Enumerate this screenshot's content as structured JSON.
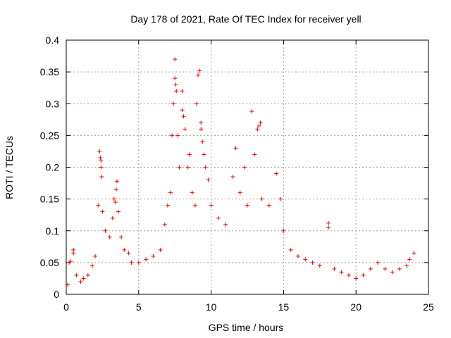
{
  "chart_data": {
    "type": "scatter",
    "title": "Day 178 of 2021, Rate Of TEC Index for receiver yell",
    "xlabel": "GPS time / hours",
    "ylabel": "ROTI / TECUs",
    "xlim": [
      0,
      25
    ],
    "ylim": [
      0,
      0.4
    ],
    "x_ticks": [
      "0",
      "5",
      "10",
      "15",
      "20",
      "25"
    ],
    "y_ticks": [
      "0",
      "0.05",
      "0.1",
      "0.15",
      "0.2",
      "0.25",
      "0.3",
      "0.35",
      "0.4"
    ],
    "grid": true,
    "legend": "none",
    "marker": "plus",
    "color": "#ff0000",
    "series": [
      {
        "values_note": "",
        "points": [
          [
            0.1,
            0.015
          ],
          [
            0.2,
            0.05
          ],
          [
            0.3,
            0.052
          ],
          [
            0.5,
            0.07
          ],
          [
            0.5,
            0.065
          ],
          [
            0.7,
            0.03
          ],
          [
            1.0,
            0.02
          ],
          [
            1.2,
            0.025
          ],
          [
            1.5,
            0.03
          ],
          [
            1.8,
            0.045
          ],
          [
            2.0,
            0.06
          ],
          [
            2.2,
            0.14
          ],
          [
            2.3,
            0.225
          ],
          [
            2.35,
            0.215
          ],
          [
            2.4,
            0.21
          ],
          [
            2.4,
            0.2
          ],
          [
            2.45,
            0.185
          ],
          [
            2.5,
            0.13
          ],
          [
            2.7,
            0.1
          ],
          [
            3.0,
            0.09
          ],
          [
            3.2,
            0.12
          ],
          [
            3.3,
            0.15
          ],
          [
            3.4,
            0.145
          ],
          [
            3.45,
            0.165
          ],
          [
            3.5,
            0.178
          ],
          [
            3.6,
            0.13
          ],
          [
            3.8,
            0.09
          ],
          [
            4.0,
            0.07
          ],
          [
            4.3,
            0.065
          ],
          [
            4.5,
            0.05
          ],
          [
            5.0,
            0.05
          ],
          [
            5.5,
            0.055
          ],
          [
            6.0,
            0.06
          ],
          [
            6.5,
            0.07
          ],
          [
            6.8,
            0.11
          ],
          [
            7.0,
            0.14
          ],
          [
            7.2,
            0.16
          ],
          [
            7.3,
            0.25
          ],
          [
            7.4,
            0.3
          ],
          [
            7.5,
            0.34
          ],
          [
            7.5,
            0.37
          ],
          [
            7.55,
            0.33
          ],
          [
            7.6,
            0.32
          ],
          [
            7.7,
            0.25
          ],
          [
            7.8,
            0.2
          ],
          [
            8.0,
            0.32
          ],
          [
            8.0,
            0.29
          ],
          [
            8.1,
            0.28
          ],
          [
            8.2,
            0.26
          ],
          [
            8.4,
            0.2
          ],
          [
            8.5,
            0.22
          ],
          [
            8.7,
            0.16
          ],
          [
            8.9,
            0.14
          ],
          [
            9.0,
            0.3
          ],
          [
            9.1,
            0.345
          ],
          [
            9.2,
            0.352
          ],
          [
            9.3,
            0.27
          ],
          [
            9.3,
            0.26
          ],
          [
            9.4,
            0.24
          ],
          [
            9.5,
            0.22
          ],
          [
            9.6,
            0.2
          ],
          [
            9.8,
            0.18
          ],
          [
            10.0,
            0.14
          ],
          [
            10.5,
            0.12
          ],
          [
            11.0,
            0.11
          ],
          [
            11.5,
            0.185
          ],
          [
            11.7,
            0.23
          ],
          [
            12.0,
            0.16
          ],
          [
            12.3,
            0.2
          ],
          [
            12.5,
            0.14
          ],
          [
            12.8,
            0.288
          ],
          [
            13.0,
            0.22
          ],
          [
            13.2,
            0.26
          ],
          [
            13.3,
            0.265
          ],
          [
            13.4,
            0.27
          ],
          [
            13.5,
            0.15
          ],
          [
            14.0,
            0.14
          ],
          [
            14.5,
            0.19
          ],
          [
            14.8,
            0.15
          ],
          [
            15.0,
            0.1
          ],
          [
            15.5,
            0.07
          ],
          [
            16.0,
            0.06
          ],
          [
            16.5,
            0.055
          ],
          [
            17.0,
            0.05
          ],
          [
            17.5,
            0.045
          ],
          [
            18.1,
            0.112
          ],
          [
            18.1,
            0.105
          ],
          [
            18.5,
            0.04
          ],
          [
            19.0,
            0.035
          ],
          [
            19.5,
            0.03
          ],
          [
            20.0,
            0.025
          ],
          [
            20.5,
            0.03
          ],
          [
            21.0,
            0.04
          ],
          [
            21.5,
            0.05
          ],
          [
            22.0,
            0.04
          ],
          [
            22.5,
            0.035
          ],
          [
            23.0,
            0.04
          ],
          [
            23.5,
            0.045
          ],
          [
            23.7,
            0.055
          ],
          [
            24.0,
            0.065
          ]
        ]
      }
    ]
  }
}
